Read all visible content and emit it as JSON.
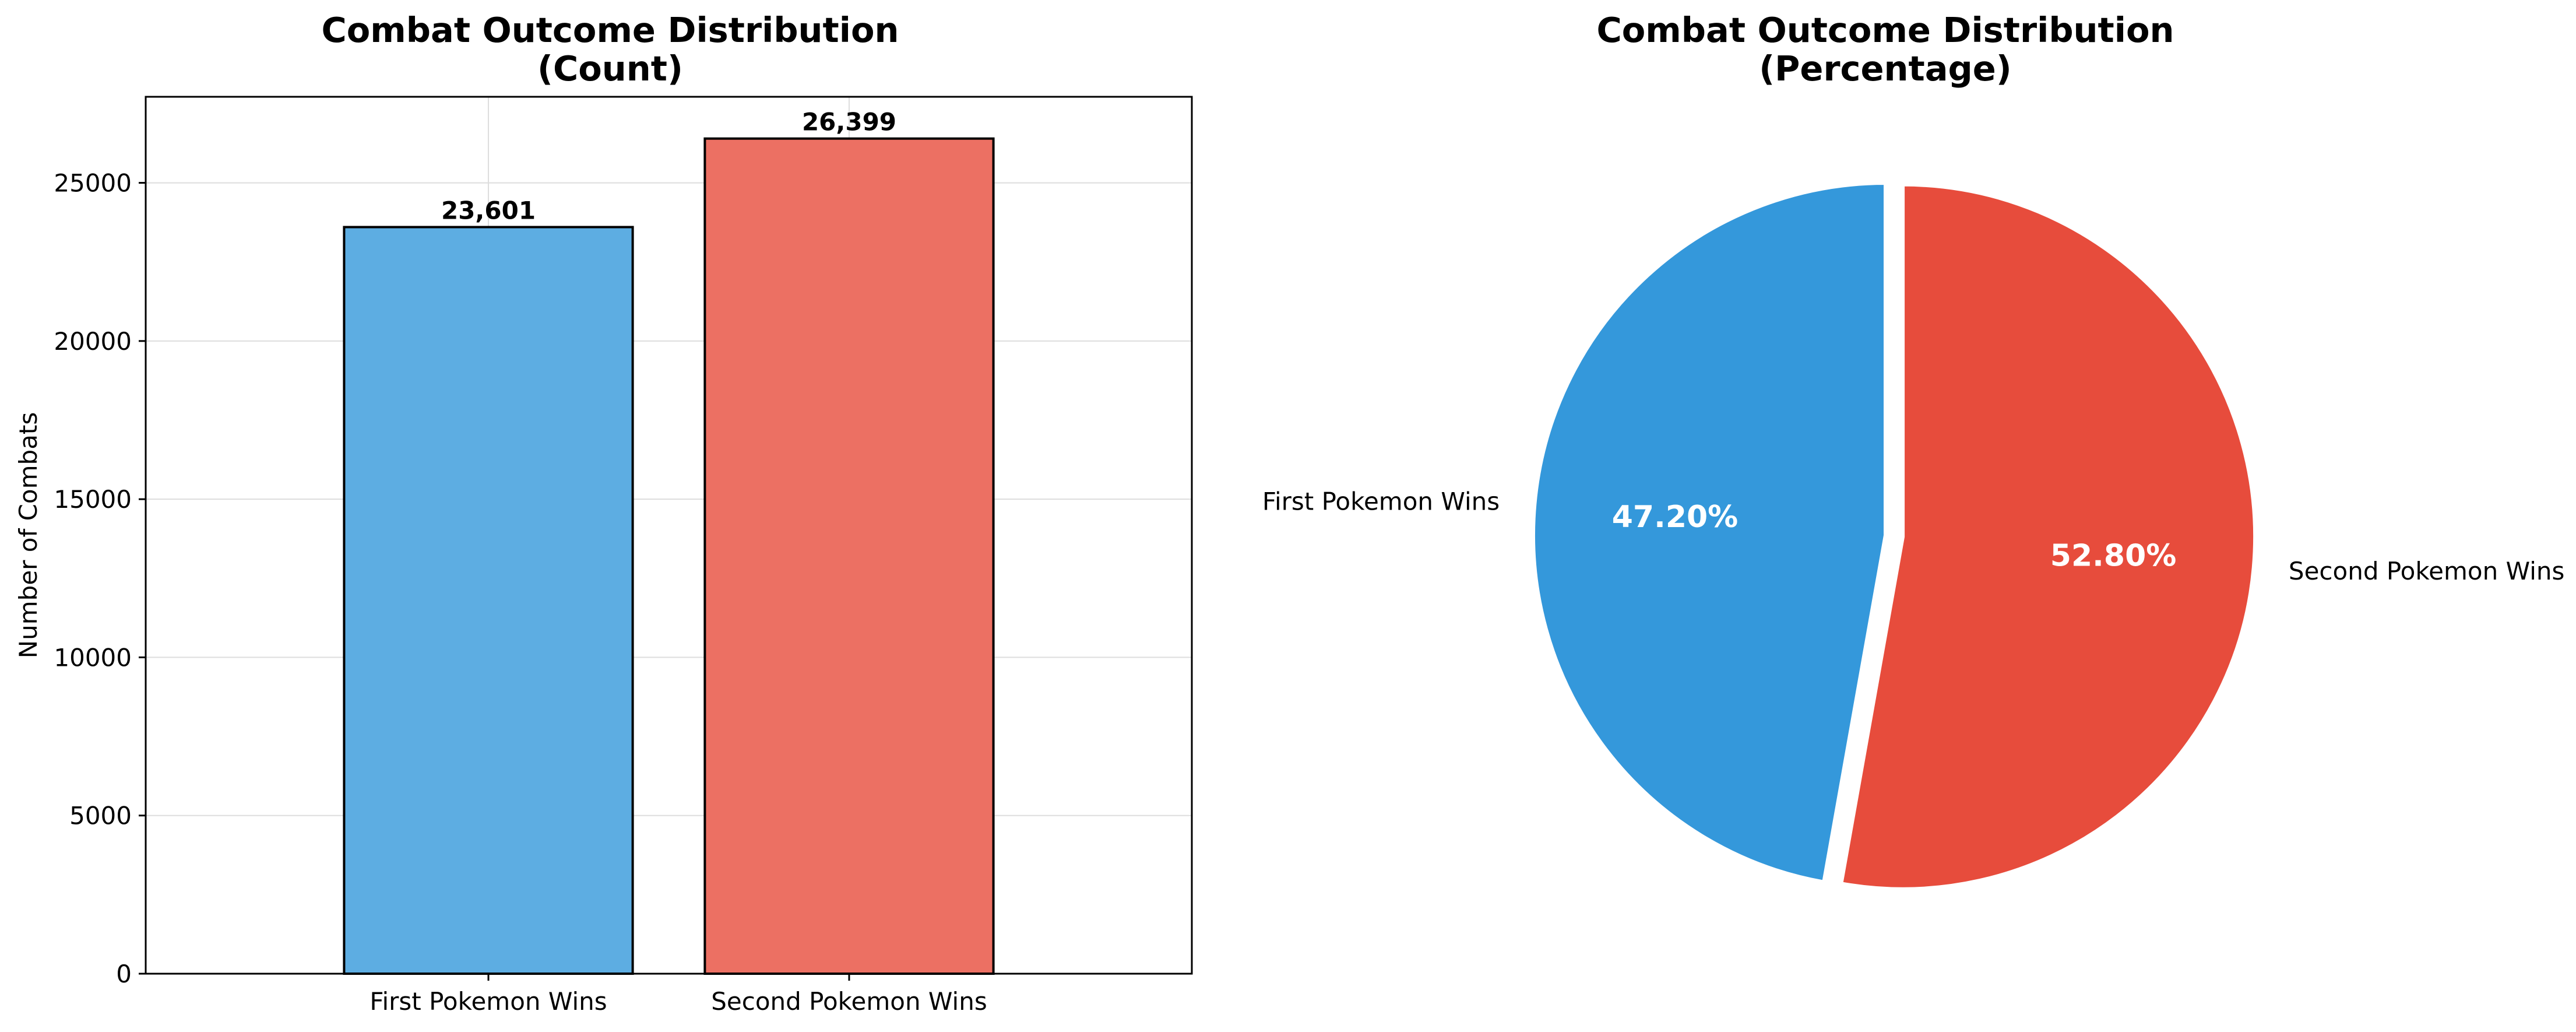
{
  "chart_data": [
    {
      "type": "bar",
      "title_lines": [
        "Combat Outcome Distribution",
        "(Count)"
      ],
      "xlabel": "",
      "ylabel": "Number of Combats",
      "categories": [
        "First Pokemon Wins",
        "Second Pokemon Wins"
      ],
      "values": [
        23601,
        26399
      ],
      "value_labels": [
        "23,601",
        "26,399"
      ],
      "ylim": [
        0,
        27720
      ],
      "yticks": [
        0,
        5000,
        10000,
        15000,
        20000,
        25000
      ],
      "ytick_labels": [
        "0",
        "5000",
        "10000",
        "15000",
        "20000",
        "25000"
      ],
      "colors": [
        "#5dade2",
        "#ec7063"
      ],
      "edge_color": "#000000",
      "grid": true
    },
    {
      "type": "pie",
      "title_lines": [
        "Combat Outcome Distribution",
        "(Percentage)"
      ],
      "labels": [
        "First Pokemon Wins",
        "Second Pokemon Wins"
      ],
      "values": [
        47.2,
        52.8
      ],
      "pct_labels": [
        "47.20%",
        "52.80%"
      ],
      "colors": [
        "#3498db",
        "#e74c3c"
      ],
      "explode": [
        0.0,
        0.05
      ],
      "start_angle": 90
    }
  ]
}
